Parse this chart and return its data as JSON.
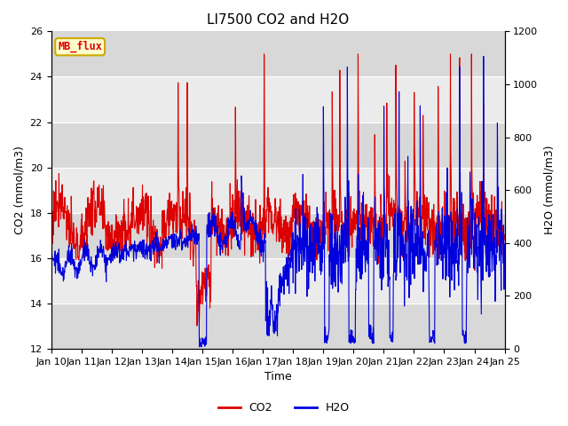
{
  "title": "LI7500 CO2 and H2O",
  "xlabel": "Time",
  "ylabel_left": "CO2 (mmol/m3)",
  "ylabel_right": "H2O (mmol/m3)",
  "co2_ylim": [
    12,
    26
  ],
  "h2o_ylim": [
    0,
    1200
  ],
  "xtick_labels": [
    "Jan 10",
    "Jan 11",
    "Jan 12",
    "Jan 13",
    "Jan 14",
    "Jan 15",
    "Jan 16",
    "Jan 17",
    "Jan 18",
    "Jan 19",
    "Jan 20",
    "Jan 21",
    "Jan 22",
    "Jan 23",
    "Jan 24",
    "Jan 25"
  ],
  "co2_color": "#dd0000",
  "h2o_color": "#0000dd",
  "axes_bg_dark": "#d8d8d8",
  "axes_bg_light": "#ebebeb",
  "annotation_text": "MB_flux",
  "annotation_bg": "#ffffcc",
  "annotation_border": "#ccaa00",
  "legend_co2": "CO2",
  "legend_h2o": "H2O",
  "title_fontsize": 11,
  "axis_fontsize": 9,
  "tick_fontsize": 8,
  "figsize": [
    6.4,
    4.8
  ],
  "dpi": 100
}
